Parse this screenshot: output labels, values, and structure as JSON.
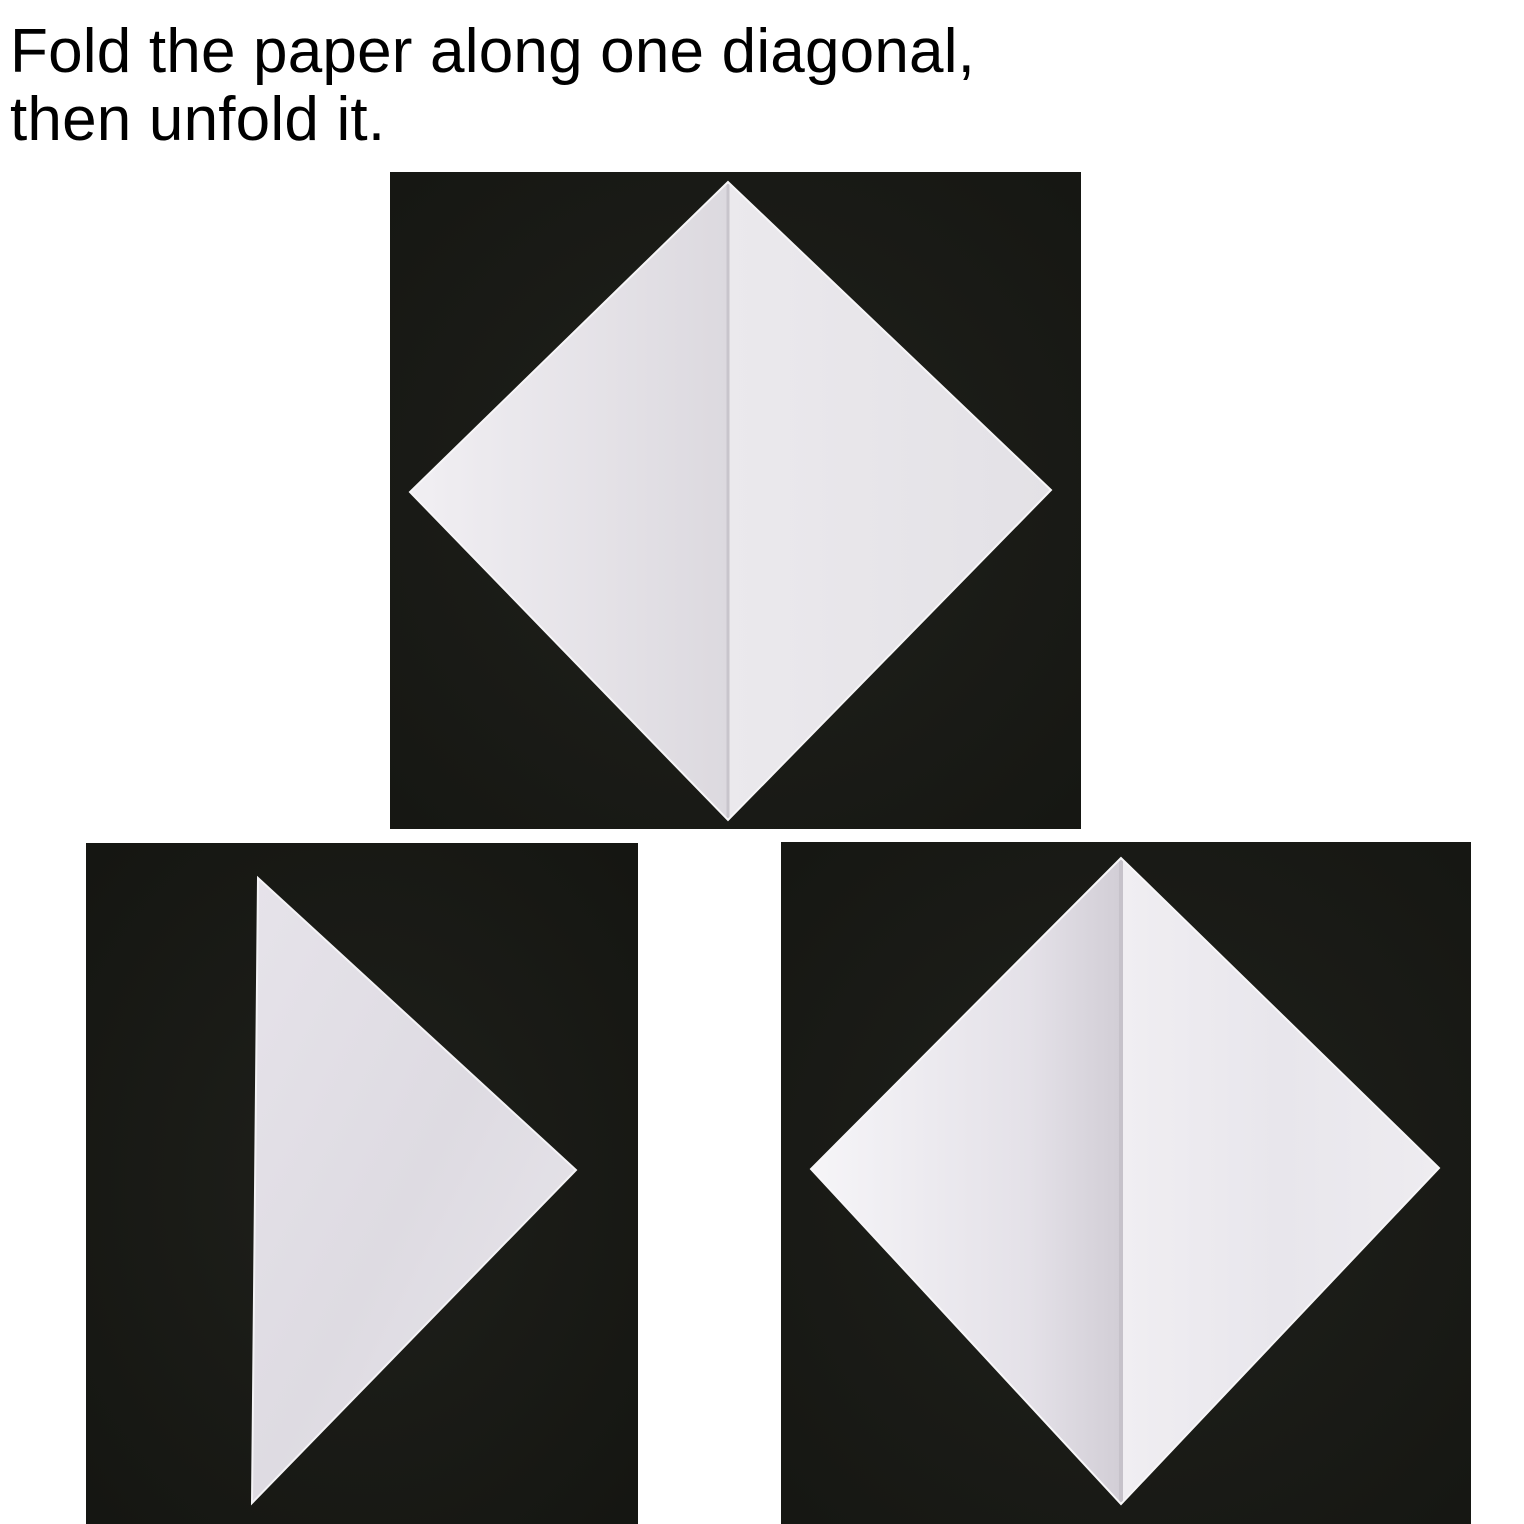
{
  "instruction": {
    "line1": "Fold the paper along one diagonal,",
    "line2": "then unfold it."
  },
  "steps": [
    {
      "state": "unfolded-square-with-vertical-crease",
      "icon": "square-paper-diamond-icon"
    },
    {
      "state": "folded-triangle",
      "icon": "triangle-paper-icon"
    },
    {
      "state": "unfolded-square-with-vertical-crease",
      "icon": "square-paper-diamond-icon"
    }
  ],
  "colors": {
    "background": "#ffffff",
    "table": "#1b1c18",
    "paper": "#ebe9ee",
    "paper_shadow": "#d4d1d8",
    "text": "#000000"
  }
}
